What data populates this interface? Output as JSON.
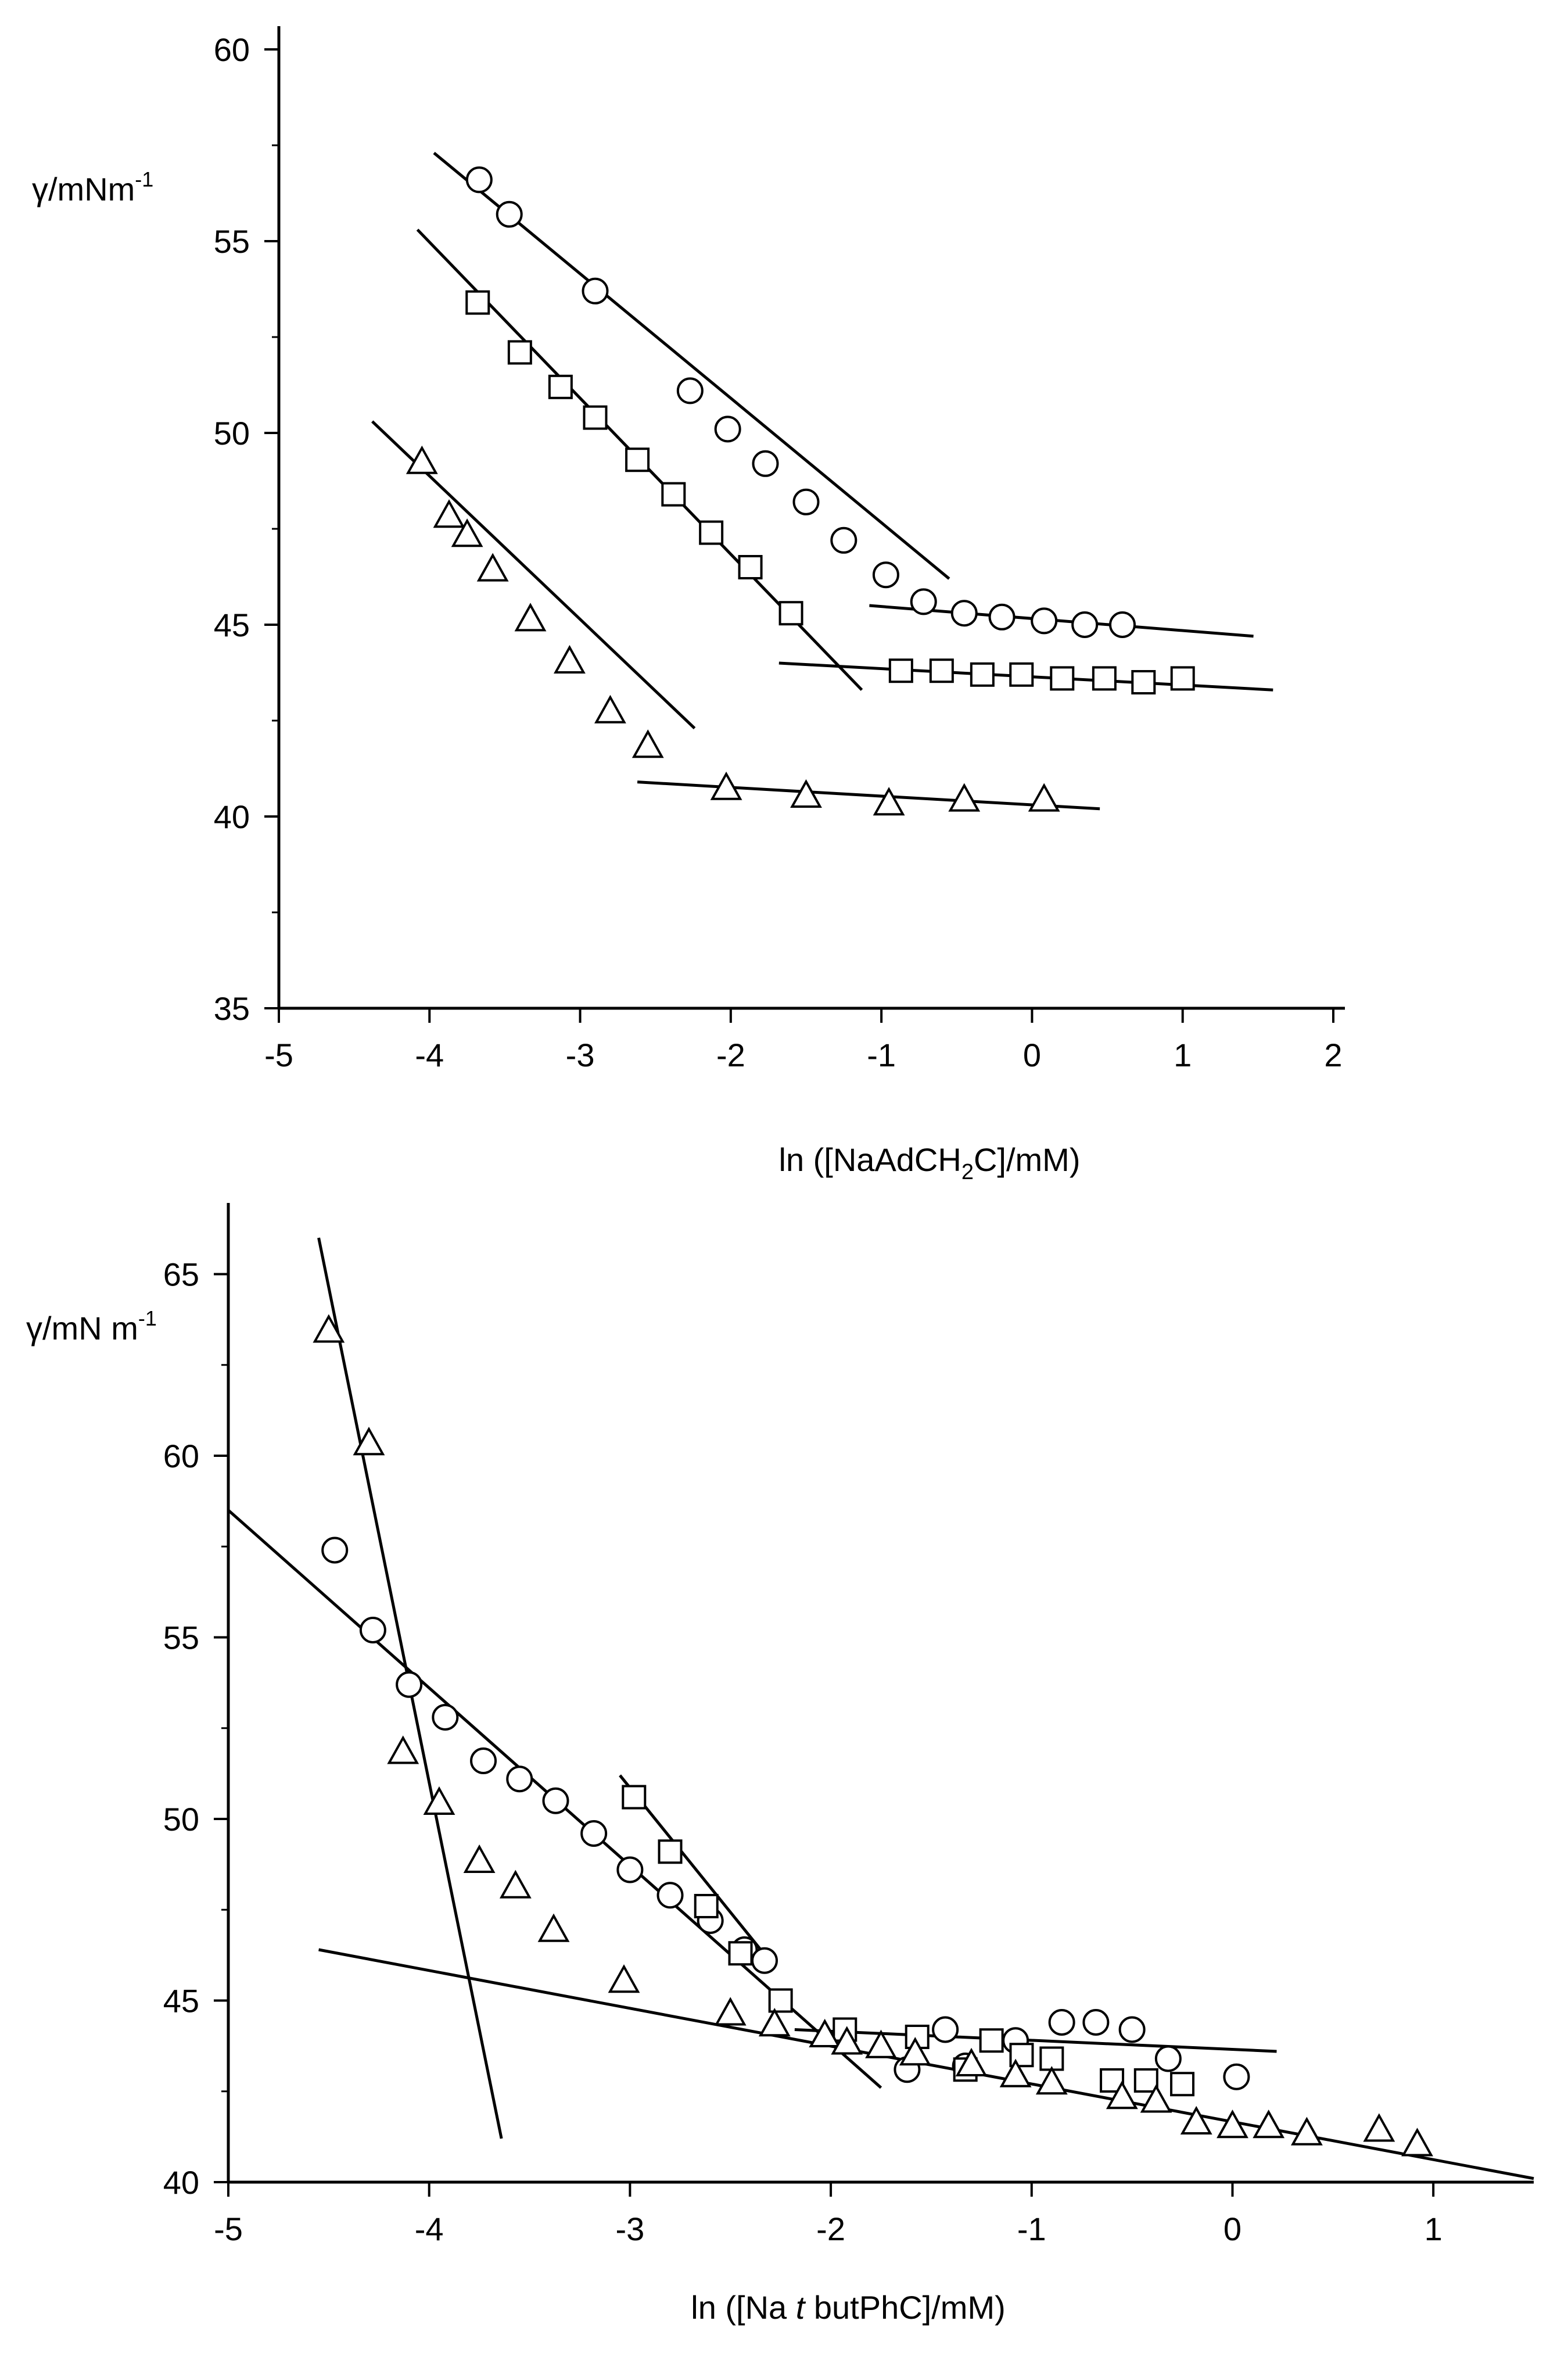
{
  "chart_data": [
    {
      "type": "scatter",
      "title": "",
      "xlabel": "ln ([NaAdCH2C]/mM)",
      "xlabel_parts": {
        "before": "ln ([NaAdCH",
        "sub": "2",
        "after": "C]/mM)"
      },
      "ylabel": "γ/mNm-1",
      "ylabel_parts": {
        "base": "γ/mNm",
        "sup": "-1"
      },
      "xlim": [
        -5,
        2
      ],
      "ylim": [
        35,
        60
      ],
      "xticks": [
        -5,
        -4,
        -3,
        -2,
        -1,
        0,
        1,
        2
      ],
      "yticks": [
        35,
        40,
        45,
        50,
        55,
        60
      ],
      "grid": false,
      "series": [
        {
          "marker": "circle",
          "points": [
            [
              -3.67,
              56.6
            ],
            [
              -3.47,
              55.7
            ],
            [
              -2.9,
              53.7
            ],
            [
              -2.27,
              51.1
            ],
            [
              -2.02,
              50.1
            ],
            [
              -1.77,
              49.2
            ],
            [
              -1.5,
              48.2
            ],
            [
              -1.25,
              47.2
            ],
            [
              -0.97,
              46.3
            ],
            [
              -0.72,
              45.6
            ],
            [
              -0.45,
              45.3
            ],
            [
              -0.2,
              45.2
            ],
            [
              0.08,
              45.1
            ],
            [
              0.35,
              45.0
            ],
            [
              0.6,
              45.0
            ]
          ]
        },
        {
          "marker": "square",
          "points": [
            [
              -3.68,
              53.4
            ],
            [
              -3.4,
              52.1
            ],
            [
              -3.13,
              51.2
            ],
            [
              -2.9,
              50.4
            ],
            [
              -2.62,
              49.3
            ],
            [
              -2.38,
              48.4
            ],
            [
              -2.13,
              47.4
            ],
            [
              -1.87,
              46.5
            ],
            [
              -1.6,
              45.3
            ],
            [
              -0.87,
              43.8
            ],
            [
              -0.6,
              43.8
            ],
            [
              -0.33,
              43.7
            ],
            [
              -0.07,
              43.7
            ],
            [
              0.2,
              43.6
            ],
            [
              0.48,
              43.6
            ],
            [
              0.74,
              43.5
            ],
            [
              1.0,
              43.6
            ]
          ]
        },
        {
          "marker": "triangle",
          "points": [
            [
              -4.05,
              49.2
            ],
            [
              -3.87,
              47.8
            ],
            [
              -3.75,
              47.3
            ],
            [
              -3.58,
              46.4
            ],
            [
              -3.33,
              45.1
            ],
            [
              -3.07,
              44.0
            ],
            [
              -2.8,
              42.7
            ],
            [
              -2.55,
              41.8
            ],
            [
              -2.03,
              40.7
            ],
            [
              -1.5,
              40.5
            ],
            [
              -0.95,
              40.3
            ],
            [
              -0.45,
              40.4
            ],
            [
              0.08,
              40.4
            ]
          ]
        }
      ],
      "lines": [
        [
          [
            -3.97,
            57.3
          ],
          [
            -0.55,
            46.2
          ]
        ],
        [
          [
            -1.08,
            45.5
          ],
          [
            1.47,
            44.7
          ]
        ],
        [
          [
            -4.08,
            55.3
          ],
          [
            -1.13,
            43.3
          ]
        ],
        [
          [
            -1.68,
            44.0
          ],
          [
            1.6,
            43.3
          ]
        ],
        [
          [
            -4.38,
            50.3
          ],
          [
            -2.24,
            42.3
          ]
        ],
        [
          [
            -2.62,
            40.9
          ],
          [
            0.45,
            40.2
          ]
        ]
      ]
    },
    {
      "type": "scatter",
      "title": "",
      "xlabel": "ln ([Na tbutPhC]/mM)",
      "xlabel_parts": {
        "before": "ln ([Na ",
        "italic": "t",
        "after": " butPhC]/mM)"
      },
      "ylabel": "γ/mN m-1",
      "ylabel_parts": {
        "base": "γ/mN m",
        "sup": "-1"
      },
      "xlim": [
        -5,
        1.5
      ],
      "ylim": [
        40,
        66
      ],
      "xticks": [
        -5,
        -4,
        -3,
        -2,
        -1,
        0,
        1
      ],
      "yticks": [
        40,
        45,
        50,
        55,
        60,
        65
      ],
      "grid": false,
      "series": [
        {
          "marker": "circle",
          "points": [
            [
              -4.47,
              57.4
            ],
            [
              -4.28,
              55.2
            ],
            [
              -4.1,
              53.7
            ],
            [
              -3.92,
              52.8
            ],
            [
              -3.73,
              51.6
            ],
            [
              -3.55,
              51.1
            ],
            [
              -3.37,
              50.5
            ],
            [
              -3.18,
              49.6
            ],
            [
              -3.0,
              48.6
            ],
            [
              -2.8,
              47.9
            ],
            [
              -2.6,
              47.2
            ],
            [
              -2.43,
              46.4
            ],
            [
              -2.33,
              46.1
            ],
            [
              -1.62,
              43.1
            ],
            [
              -1.43,
              44.2
            ],
            [
              -1.33,
              43.2
            ],
            [
              -1.08,
              43.9
            ],
            [
              -0.85,
              44.4
            ],
            [
              -0.68,
              44.4
            ],
            [
              -0.5,
              44.2
            ],
            [
              -0.32,
              43.4
            ],
            [
              0.02,
              42.9
            ]
          ]
        },
        {
          "marker": "square",
          "points": [
            [
              -2.98,
              50.6
            ],
            [
              -2.8,
              49.1
            ],
            [
              -2.62,
              47.6
            ],
            [
              -2.45,
              46.3
            ],
            [
              -2.25,
              45.0
            ],
            [
              -1.93,
              44.2
            ],
            [
              -1.57,
              44.0
            ],
            [
              -1.33,
              43.1
            ],
            [
              -1.2,
              43.9
            ],
            [
              -1.05,
              43.5
            ],
            [
              -0.9,
              43.4
            ],
            [
              -0.6,
              42.8
            ],
            [
              -0.43,
              42.8
            ],
            [
              -0.25,
              42.7
            ]
          ]
        },
        {
          "marker": "triangle",
          "points": [
            [
              -4.5,
              63.4
            ],
            [
              -4.3,
              60.3
            ],
            [
              -4.13,
              51.8
            ],
            [
              -3.95,
              50.4
            ],
            [
              -3.75,
              48.8
            ],
            [
              -3.57,
              48.1
            ],
            [
              -3.38,
              46.9
            ],
            [
              -3.03,
              45.5
            ],
            [
              -2.5,
              44.6
            ],
            [
              -2.28,
              44.3
            ],
            [
              -2.03,
              44.0
            ],
            [
              -1.92,
              43.8
            ],
            [
              -1.75,
              43.7
            ],
            [
              -1.58,
              43.5
            ],
            [
              -1.3,
              43.2
            ],
            [
              -1.08,
              42.9
            ],
            [
              -0.9,
              42.7
            ],
            [
              -0.55,
              42.3
            ],
            [
              -0.38,
              42.2
            ],
            [
              -0.18,
              41.6
            ],
            [
              0.0,
              41.5
            ],
            [
              0.18,
              41.5
            ],
            [
              0.37,
              41.3
            ],
            [
              0.73,
              41.4
            ],
            [
              0.92,
              41.0
            ]
          ]
        }
      ],
      "lines": [
        [
          [
            -4.55,
            66.0
          ],
          [
            -3.64,
            41.2
          ]
        ],
        [
          [
            -5.0,
            58.5
          ],
          [
            -1.75,
            42.6
          ]
        ],
        [
          [
            -4.55,
            46.4
          ],
          [
            1.5,
            40.1
          ]
        ],
        [
          [
            -2.18,
            44.2
          ],
          [
            0.22,
            43.6
          ]
        ],
        [
          [
            -3.05,
            51.2
          ],
          [
            -2.32,
            46.2
          ]
        ]
      ]
    }
  ]
}
